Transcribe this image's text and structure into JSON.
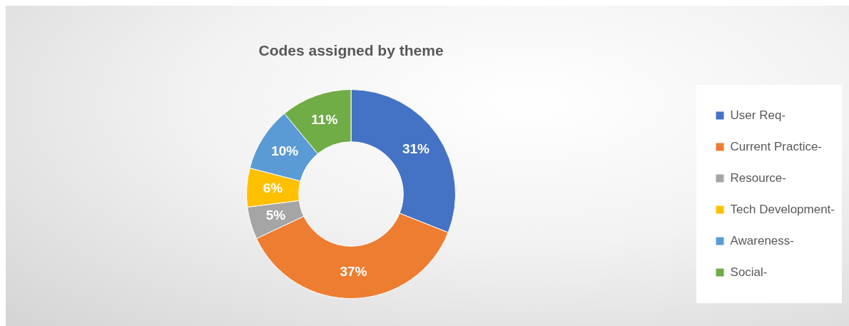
{
  "chart_data": {
    "type": "donut",
    "title": "Codes assigned by theme",
    "categories": [
      "User Req-",
      "Current Practice-",
      "Resource-",
      "Tech Development-",
      "Awareness-",
      "Social-"
    ],
    "values": [
      31,
      37,
      5,
      6,
      10,
      11
    ],
    "colors": [
      "#4472c4",
      "#ed7d31",
      "#a5a5a5",
      "#ffc000",
      "#5b9bd5",
      "#70ad47"
    ],
    "value_labels": [
      "31%",
      "37%",
      "5%",
      "6%",
      "10%",
      "11%"
    ],
    "legend": "right"
  }
}
